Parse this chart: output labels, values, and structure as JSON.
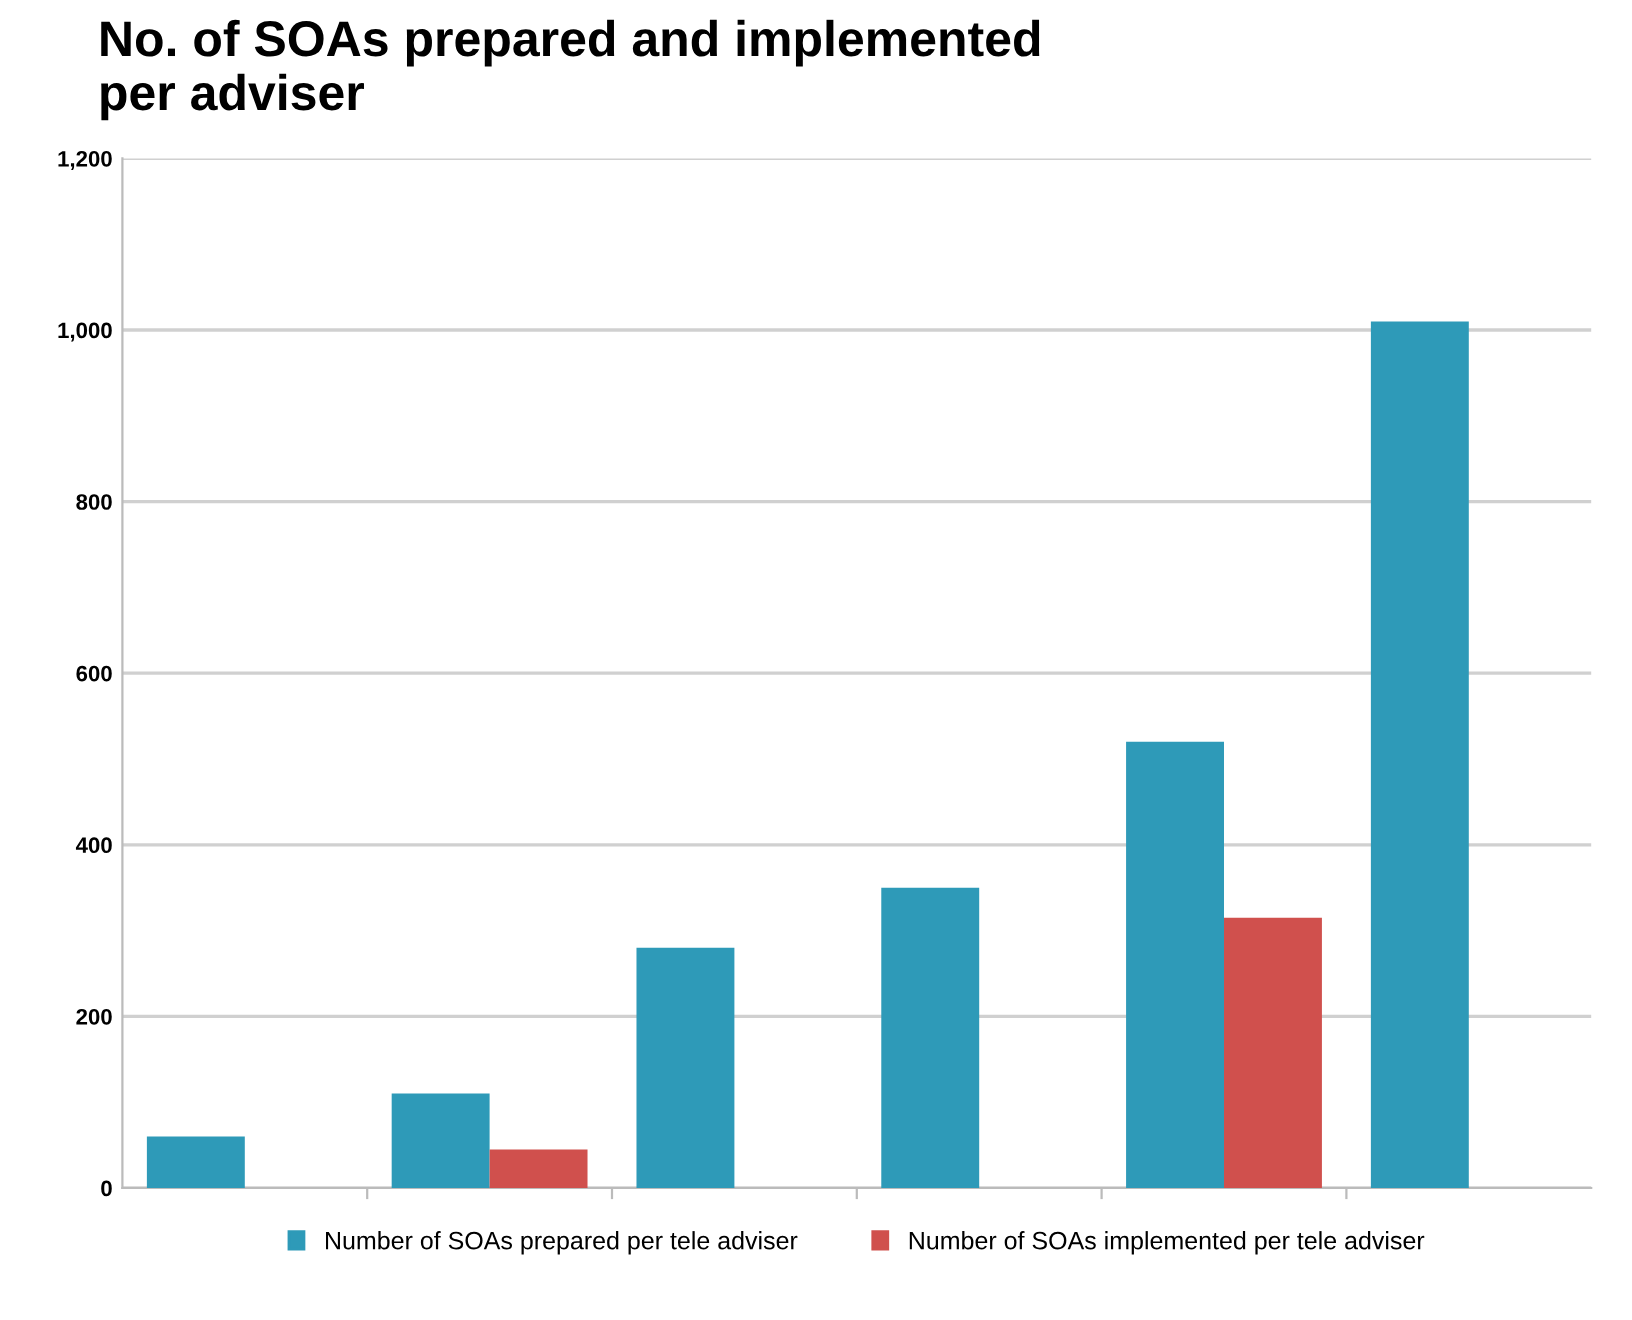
{
  "chart_data": {
    "type": "bar",
    "title": "No. of SOAs prepared and implemented\nper adviser",
    "categories": [
      null,
      null,
      null,
      null,
      null,
      null
    ],
    "series": [
      {
        "name": "Number of SOAs prepared per tele adviser",
        "color": "#2e9ab8",
        "values": [
          60,
          110,
          280,
          350,
          520,
          1010
        ]
      },
      {
        "name": "Number of SOAs implemented per tele adviser",
        "color": "#d0504d",
        "values": [
          null,
          45,
          null,
          null,
          315,
          null
        ]
      }
    ],
    "ylim": [
      0,
      1200
    ],
    "yticks": [
      0,
      {
        "value": 200,
        "label": "200"
      },
      {
        "value": 400,
        "label": "400"
      },
      {
        "value": 600,
        "label": "600"
      },
      {
        "value": 800,
        "label": "800"
      },
      {
        "value": 1000,
        "label": "1,000"
      },
      {
        "value": 1200,
        "label": "1,200"
      }
    ],
    "grid": "y",
    "legend": "bottom"
  }
}
